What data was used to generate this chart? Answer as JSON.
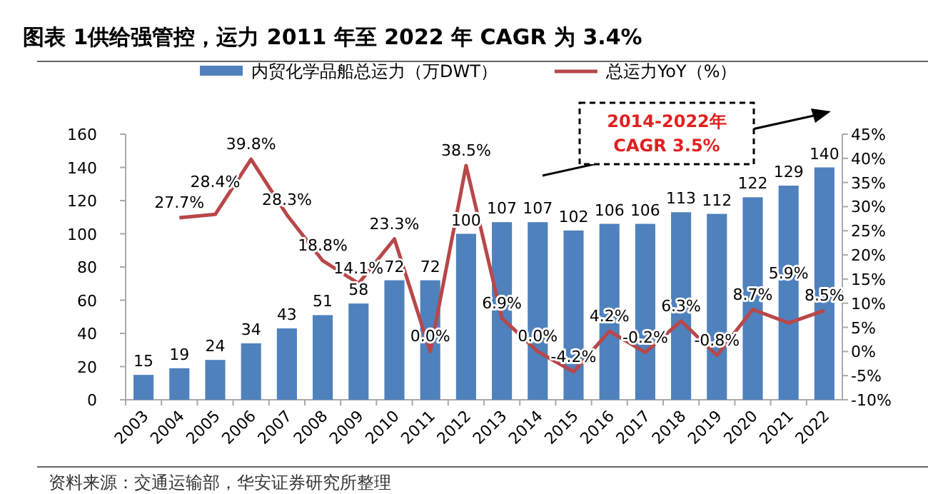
{
  "chart_data": {
    "type": "bar",
    "title": "图表 1供给强管控，运力 2011 年至 2022 年 CAGR 为 3.4%",
    "categories": [
      "2003",
      "2004",
      "2005",
      "2006",
      "2007",
      "2008",
      "2009",
      "2010",
      "2011",
      "2012",
      "2013",
      "2014",
      "2015",
      "2016",
      "2017",
      "2018",
      "2019",
      "2020",
      "2021",
      "2022"
    ],
    "series": [
      {
        "name": "内贸化学品船总运力（万DWT）",
        "color": "#4f81bd",
        "values": [
          15,
          19,
          24,
          34,
          43,
          51,
          58,
          72,
          72,
          100,
          107,
          107,
          102,
          106,
          106,
          113,
          112,
          122,
          129,
          140
        ],
        "value_labels": [
          "15",
          "19",
          "24",
          "34",
          "43",
          "51",
          "58",
          "72",
          "72",
          "100",
          "107",
          "107",
          "102",
          "106",
          "106",
          "113",
          "112",
          "122",
          "129",
          "140"
        ]
      },
      {
        "name": "总运力YoY（%）",
        "type": "line",
        "axis": "y2",
        "color": "#b8474a",
        "values": [
          null,
          27.7,
          28.4,
          39.8,
          28.3,
          18.8,
          14.1,
          23.3,
          0.0,
          38.5,
          6.9,
          0.0,
          -4.2,
          4.2,
          -0.2,
          6.3,
          -0.8,
          8.7,
          5.9,
          8.5
        ],
        "value_labels": [
          null,
          "27.7%",
          "28.4%",
          "39.8%",
          "28.3%",
          "18.8%",
          "14.1%",
          "23.3%",
          "0.0%",
          "38.5%",
          "6.9%",
          "0.0%",
          "-4.2%",
          "4.2%",
          "-0.2%",
          "6.3%",
          "-0.8%",
          "8.7%",
          "5.9%",
          "8.5%"
        ]
      }
    ],
    "ylim": [
      0,
      160
    ],
    "yticks": [
      0,
      20,
      40,
      60,
      80,
      100,
      120,
      140,
      160
    ],
    "y2lim": [
      -10,
      45
    ],
    "y2ticks": [
      {
        "value": -10,
        "label": "-10%"
      },
      {
        "value": -5,
        "label": "-5%"
      },
      {
        "value": 0,
        "label": "0%"
      },
      {
        "value": 5,
        "label": "5%"
      },
      {
        "value": 10,
        "label": "10%"
      },
      {
        "value": 15,
        "label": "15%"
      },
      {
        "value": 20,
        "label": "20%"
      },
      {
        "value": 25,
        "label": "25%"
      },
      {
        "value": 30,
        "label": "30%"
      },
      {
        "value": 35,
        "label": "35%"
      },
      {
        "value": 40,
        "label": "40%"
      },
      {
        "value": 45,
        "label": "45%"
      }
    ],
    "legend": "top",
    "grid": false,
    "marker": "none",
    "annotations": [
      "2014-2022年\nCAGR 3.5%",
      "资料来源：交通运输部，华安证券研究所整理"
    ]
  }
}
